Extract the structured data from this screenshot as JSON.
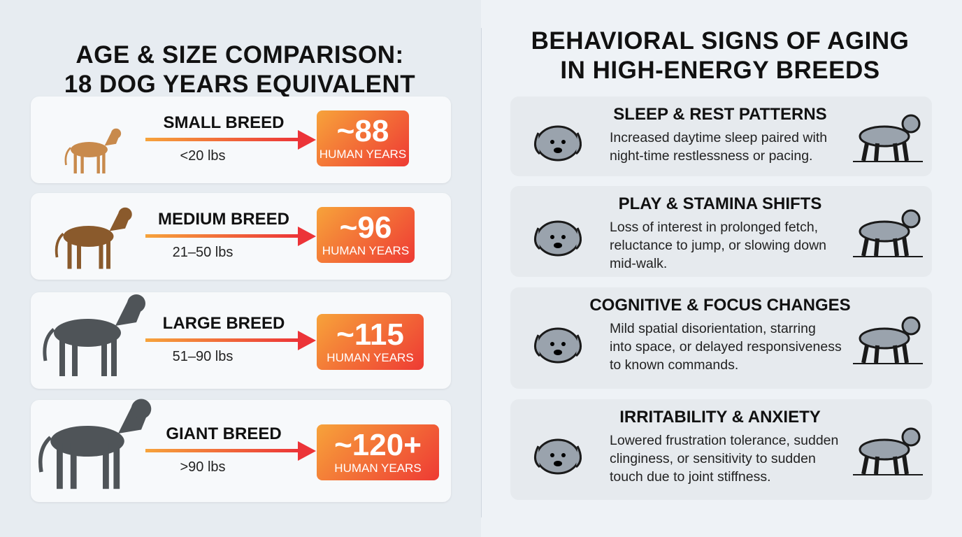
{
  "left": {
    "title": [
      "AGE & SIZE COMPARISON:",
      "18 DOG YEARS EQUIVALENT"
    ],
    "breeds": [
      {
        "name": "SMALL BREED",
        "weight": "<20 lbs",
        "value": "~88",
        "unit": "HUMAN YEARS"
      },
      {
        "name": "MEDIUM BREED",
        "weight": "21–50 lbs",
        "value": "~96",
        "unit": "HUMAN YEARS"
      },
      {
        "name": "LARGE BREED",
        "weight": "51–90 lbs",
        "value": "~115",
        "unit": "HUMAN YEARS"
      },
      {
        "name": "GIANT BREED",
        "weight": ">90 lbs",
        "value": "~120+",
        "unit": "HUMAN YEARS"
      }
    ]
  },
  "right": {
    "title": [
      "BEHAVIORAL SIGNS OF AGING",
      "IN HIGH-ENERGY BREEDS"
    ],
    "items": [
      {
        "heading": "SLEEP & REST PATTERNS",
        "body": [
          "Increased daytime sleep paired with",
          "night-time restlessness or pacing."
        ]
      },
      {
        "heading": "PLAY & STAMINA SHIFTS",
        "body": [
          "Loss of interest in prolonged fetch,",
          "reluctance to jump, or slowing down",
          "mid-walk."
        ]
      },
      {
        "heading": "COGNITIVE & FOCUS CHANGES",
        "body": [
          "Mild spatial disorientation, starring",
          "into space, or delayed responsiveness",
          "to known commands."
        ]
      },
      {
        "heading": "IRRITABILITY & ANXIETY",
        "body": [
          "Lowered frustration tolerance, sudden",
          "clinginess, or sensitivity to sudden",
          "touch due to joint stiffness."
        ]
      }
    ]
  }
}
